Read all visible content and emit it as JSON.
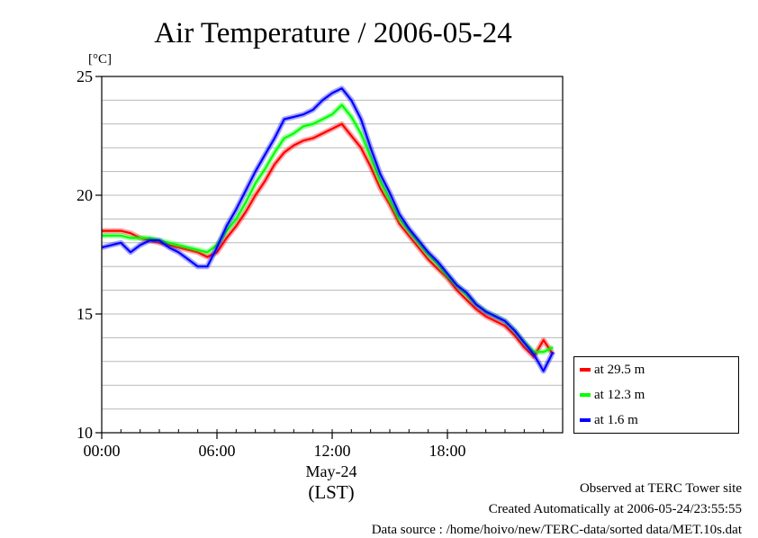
{
  "chart_data": {
    "type": "line",
    "title": "Air Temperature / 2006-05-24",
    "unit_label": "[°C]",
    "xlabel_date": "May-24",
    "xlabel_tz": "(LST)",
    "x_ticks": [
      {
        "value": 0,
        "label": "00:00"
      },
      {
        "value": 6,
        "label": "06:00"
      },
      {
        "value": 12,
        "label": "12:00"
      },
      {
        "value": 18,
        "label": "18:00"
      }
    ],
    "xlim": [
      0,
      24
    ],
    "y_ticks": [
      10,
      15,
      20,
      25
    ],
    "ylim": [
      10,
      25
    ],
    "grid": true,
    "legend_position": "right-bottom",
    "x": [
      0,
      0.5,
      1,
      1.5,
      2,
      2.5,
      3,
      3.5,
      4,
      4.5,
      5,
      5.5,
      6,
      6.5,
      7,
      7.5,
      8,
      8.5,
      9,
      9.5,
      10,
      10.5,
      11,
      11.5,
      12,
      12.5,
      13,
      13.5,
      14,
      14.5,
      15,
      15.5,
      16,
      16.5,
      17,
      17.5,
      18,
      18.5,
      19,
      19.5,
      20,
      20.5,
      21,
      21.5,
      22,
      22.5,
      23,
      23.5
    ],
    "series": [
      {
        "name": "at 29.5 m",
        "color": "#ff0000",
        "values": [
          18.5,
          18.5,
          18.5,
          18.4,
          18.2,
          18.1,
          18.0,
          17.9,
          17.8,
          17.7,
          17.6,
          17.4,
          17.6,
          18.2,
          18.7,
          19.3,
          20.0,
          20.6,
          21.3,
          21.8,
          22.1,
          22.3,
          22.4,
          22.6,
          22.8,
          23.0,
          22.5,
          22.0,
          21.2,
          20.3,
          19.6,
          18.8,
          18.3,
          17.8,
          17.3,
          16.9,
          16.5,
          16.0,
          15.6,
          15.2,
          14.9,
          14.7,
          14.5,
          14.1,
          13.6,
          13.2,
          13.9,
          13.3
        ]
      },
      {
        "name": "at 12.3 m",
        "color": "#00ff00",
        "values": [
          18.3,
          18.3,
          18.3,
          18.2,
          18.2,
          18.2,
          18.1,
          18.0,
          17.9,
          17.8,
          17.7,
          17.6,
          17.9,
          18.5,
          19.0,
          19.7,
          20.5,
          21.1,
          21.8,
          22.4,
          22.6,
          22.9,
          23.0,
          23.2,
          23.4,
          23.8,
          23.3,
          22.6,
          21.6,
          20.6,
          19.8,
          19.0,
          18.5,
          18.0,
          17.5,
          17.1,
          16.6,
          16.2,
          15.8,
          15.4,
          15.1,
          14.9,
          14.7,
          14.3,
          13.8,
          13.4,
          13.4,
          13.6
        ]
      },
      {
        "name": "at 1.6 m",
        "color": "#0000ff",
        "values": [
          17.8,
          17.9,
          18.0,
          17.6,
          17.9,
          18.1,
          18.1,
          17.8,
          17.6,
          17.3,
          17.0,
          17.0,
          17.8,
          18.7,
          19.4,
          20.2,
          21.0,
          21.7,
          22.4,
          23.2,
          23.3,
          23.4,
          23.6,
          24.0,
          24.3,
          24.5,
          24.0,
          23.2,
          22.0,
          20.9,
          20.1,
          19.2,
          18.6,
          18.1,
          17.6,
          17.2,
          16.7,
          16.2,
          15.9,
          15.4,
          15.1,
          14.9,
          14.7,
          14.3,
          13.8,
          13.3,
          12.6,
          13.4
        ]
      }
    ]
  },
  "footer": {
    "line1": "Observed at TERC Tower site",
    "line2": "Created Automatically at 2006-05-24/23:55:55",
    "line3": "Data source : /home/hoivo/new/TERC-data/sorted  data/MET.10s.dat"
  }
}
